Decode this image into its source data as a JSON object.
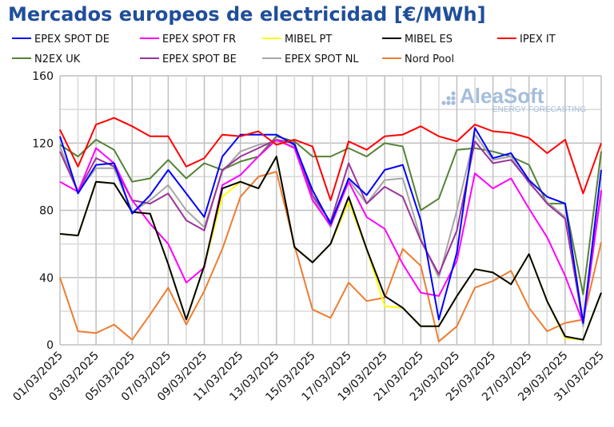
{
  "chart_data": {
    "type": "line",
    "title": "Mercados europeos de electricidad [€/MWh]",
    "xlabel": "",
    "ylabel": "",
    "ylim": [
      0,
      160
    ],
    "yticks": [
      0,
      40,
      80,
      120,
      160
    ],
    "grid": true,
    "legend_placement": "top",
    "x": [
      "01/03/2025",
      "02/03/2025",
      "03/03/2025",
      "04/03/2025",
      "05/03/2025",
      "06/03/2025",
      "07/03/2025",
      "08/03/2025",
      "09/03/2025",
      "10/03/2025",
      "11/03/2025",
      "12/03/2025",
      "13/03/2025",
      "14/03/2025",
      "15/03/2025",
      "16/03/2025",
      "17/03/2025",
      "18/03/2025",
      "19/03/2025",
      "20/03/2025",
      "21/03/2025",
      "22/03/2025",
      "23/03/2025",
      "24/03/2025",
      "25/03/2025",
      "26/03/2025",
      "27/03/2025",
      "28/03/2025",
      "29/03/2025",
      "30/03/2025",
      "31/03/2025"
    ],
    "xtick_labels": [
      "01/03/2025",
      "03/03/2025",
      "05/03/2025",
      "07/03/2025",
      "09/03/2025",
      "11/03/2025",
      "13/03/2025",
      "15/03/2025",
      "17/03/2025",
      "19/03/2025",
      "21/03/2025",
      "23/03/2025",
      "25/03/2025",
      "27/03/2025",
      "29/03/2025",
      "31/03/2025"
    ],
    "series": [
      {
        "name": "N2EX UK",
        "color": "#548235",
        "values": [
          119,
          112,
          122,
          116,
          97,
          99,
          110,
          99,
          108,
          104,
          109,
          112,
          124,
          121,
          112,
          112,
          117,
          112,
          120,
          118,
          80,
          87,
          116,
          117,
          115,
          112,
          107,
          84,
          84,
          30,
          115
        ]
      },
      {
        "name": "Nord Pool",
        "color": "#ed7d31",
        "values": [
          40,
          8,
          7,
          12,
          3,
          18,
          34,
          12,
          32,
          57,
          88,
          100,
          103,
          59,
          21,
          16,
          37,
          26,
          28,
          57,
          47,
          2,
          11,
          34,
          38,
          44,
          22,
          8,
          13,
          15,
          61
        ]
      },
      {
        "name": "EPEX SPOT NL",
        "color": "#a6a6a6",
        "values": [
          118,
          91,
          105,
          105,
          79,
          86,
          95,
          80,
          70,
          103,
          115,
          119,
          121,
          118,
          88,
          70,
          98,
          84,
          98,
          99,
          63,
          40,
          80,
          125,
          110,
          112,
          96,
          85,
          76,
          11,
          92
        ]
      },
      {
        "name": "EPEX SPOT BE",
        "color": "#993399",
        "values": [
          115,
          91,
          111,
          106,
          86,
          84,
          90,
          74,
          68,
          104,
          112,
          117,
          122,
          120,
          89,
          73,
          108,
          84,
          94,
          88,
          62,
          42,
          68,
          121,
          108,
          110,
          97,
          84,
          75,
          13,
          91
        ]
      },
      {
        "name": "EPEX SPOT FR",
        "color": "#ff00ff",
        "values": [
          97,
          91,
          117,
          108,
          86,
          72,
          60,
          37,
          46,
          95,
          101,
          112,
          122,
          117,
          86,
          71,
          97,
          76,
          69,
          48,
          31,
          29,
          50,
          102,
          93,
          99,
          81,
          64,
          41,
          13,
          92
        ]
      },
      {
        "name": "MIBEL PT",
        "color": "#ffff00",
        "values": [
          66,
          65,
          97,
          96,
          79,
          78,
          48,
          15,
          47,
          88,
          97,
          93,
          112,
          58,
          49,
          60,
          85,
          57,
          23,
          22,
          11,
          11,
          29,
          45,
          43,
          36,
          54,
          26,
          4,
          3,
          31
        ]
      },
      {
        "name": "MIBEL ES",
        "color": "#000000",
        "values": [
          66,
          65,
          97,
          96,
          79,
          78,
          48,
          15,
          47,
          93,
          97,
          93,
          112,
          58,
          49,
          60,
          88,
          57,
          29,
          22,
          11,
          11,
          29,
          45,
          43,
          36,
          54,
          26,
          5,
          3,
          31
        ]
      },
      {
        "name": "EPEX SPOT DE",
        "color": "#0000ff",
        "values": [
          124,
          90,
          107,
          108,
          78,
          89,
          104,
          90,
          76,
          112,
          125,
          125,
          125,
          119,
          92,
          72,
          99,
          89,
          104,
          107,
          74,
          15,
          55,
          129,
          111,
          114,
          98,
          88,
          84,
          13,
          104
        ]
      },
      {
        "name": "IPEX IT",
        "color": "#ff0000",
        "values": [
          128,
          106,
          131,
          135,
          130,
          124,
          124,
          106,
          111,
          125,
          124,
          127,
          119,
          122,
          118,
          86,
          121,
          116,
          124,
          125,
          130,
          124,
          121,
          131,
          127,
          126,
          123,
          114,
          122,
          90,
          120
        ]
      }
    ],
    "legend_order": [
      "EPEX SPOT DE",
      "EPEX SPOT FR",
      "MIBEL PT",
      "MIBEL ES",
      "IPEX IT",
      "N2EX UK",
      "EPEX SPOT BE",
      "EPEX SPOT NL",
      "Nord Pool"
    ]
  },
  "watermark": {
    "brand": "AleaSoft",
    "tagline": "ENERGY FORECASTING"
  }
}
